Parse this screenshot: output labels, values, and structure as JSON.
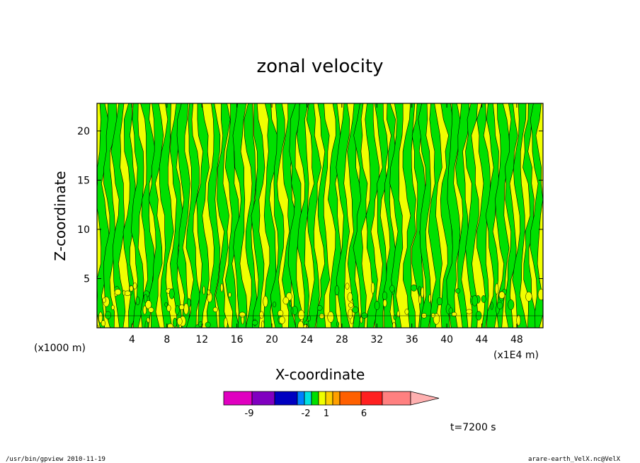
{
  "chart_data": {
    "type": "heatmap",
    "title": "zonal velocity",
    "xlabel": "X-coordinate",
    "ylabel": "Z-coordinate",
    "x_unit_label": "(x1E4 m)",
    "y_unit_label": "(x1000 m)",
    "xlim": [
      0,
      51
    ],
    "ylim": [
      0,
      22.8
    ],
    "x_ticks": [
      4,
      8,
      12,
      16,
      20,
      24,
      28,
      32,
      36,
      40,
      44,
      48
    ],
    "y_ticks": [
      5,
      10,
      15,
      20
    ],
    "field_description": "contour-filled field; values mostly between -1 and 1 with vertically elongated alternating bands",
    "contour_levels": [
      -12,
      -9,
      -6,
      -3,
      -2,
      -1,
      0,
      1,
      2,
      3,
      6,
      9,
      12
    ],
    "colorbar": {
      "colors": [
        "#e000c0",
        "#8000c0",
        "#0000c0",
        "#0080ff",
        "#00e0e0",
        "#00e000",
        "#f0ff00",
        "#ffd000",
        "#ffa000",
        "#ff6000",
        "#ff2020",
        "#ff8080",
        "#ffb0b0"
      ],
      "tick_labels": [
        "-9",
        "-2",
        "1",
        "6"
      ],
      "extend": "max"
    },
    "dominant_colors": [
      "#00e000",
      "#f0ff00"
    ],
    "time_label": "t=7200 s"
  },
  "footer": {
    "left": "/usr/bin/gpview  2010-11-19",
    "right": "arare-earth_VelX.nc@VelX"
  }
}
